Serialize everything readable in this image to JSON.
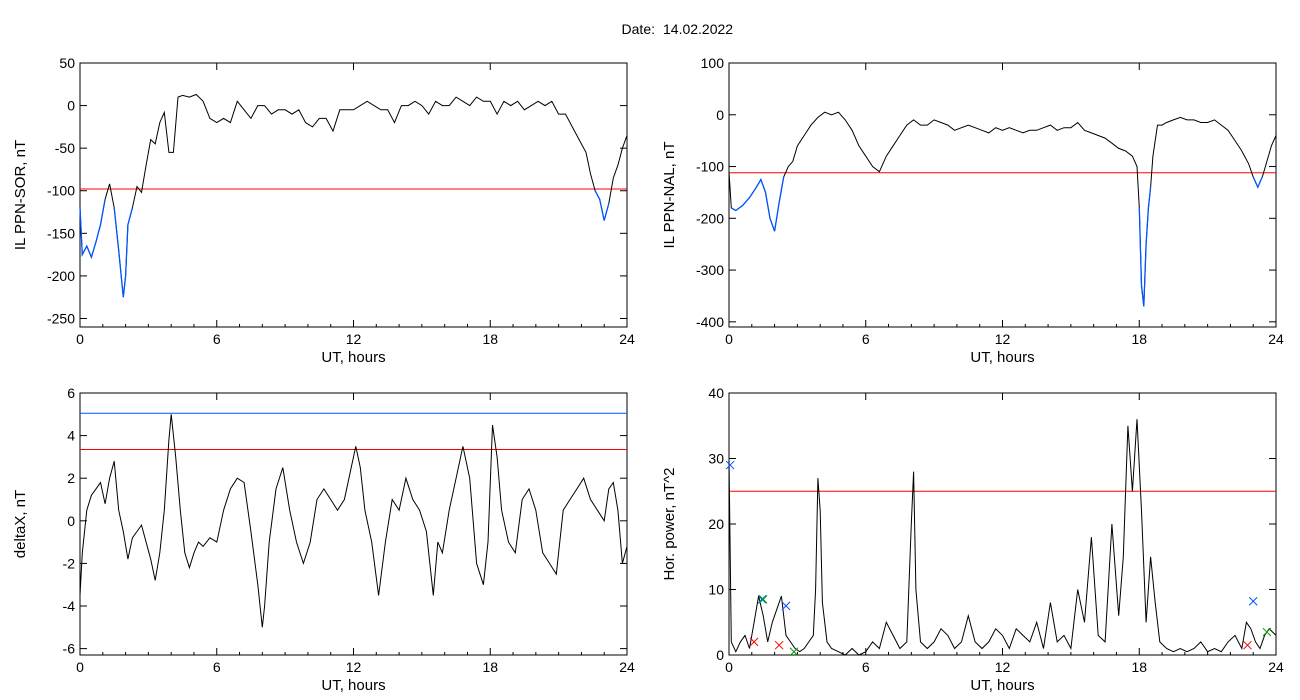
{
  "figure": {
    "title_prefix": "Date:",
    "title_date": "14.02.2022"
  },
  "colors": {
    "black": "#000000",
    "red": "#ff0000",
    "blue": "#0055ff",
    "green": "#00a000",
    "frame": "#000000"
  },
  "chart_data": [
    {
      "type": "line",
      "ylabel": "IL PPN-SOR, nT",
      "xlabel": "UT, hours",
      "xlim": [
        0,
        24
      ],
      "ylim": [
        -260,
        50
      ],
      "xticks": [
        0,
        6,
        12,
        18,
        24
      ],
      "yticks": [
        -250,
        -200,
        -150,
        -100,
        -50,
        0,
        50
      ],
      "threshold": -98,
      "series": [
        {
          "color": "black",
          "highlight_below_threshold": "blue",
          "x": [
            0,
            0.1,
            0.3,
            0.5,
            0.7,
            0.9,
            1.1,
            1.3,
            1.5,
            1.7,
            1.9,
            2.0,
            2.1,
            2.3,
            2.5,
            2.7,
            2.9,
            3.1,
            3.3,
            3.5,
            3.7,
            3.9,
            4.1,
            4.3,
            4.5,
            4.8,
            5.1,
            5.4,
            5.7,
            6.0,
            6.3,
            6.6,
            6.9,
            7.2,
            7.5,
            7.8,
            8.1,
            8.4,
            8.7,
            9.0,
            9.3,
            9.6,
            9.9,
            10.2,
            10.5,
            10.8,
            11.1,
            11.4,
            11.7,
            12.0,
            12.3,
            12.6,
            12.9,
            13.2,
            13.5,
            13.8,
            14.1,
            14.4,
            14.7,
            15.0,
            15.3,
            15.6,
            15.9,
            16.2,
            16.5,
            16.8,
            17.1,
            17.4,
            17.7,
            18.0,
            18.3,
            18.6,
            18.9,
            19.2,
            19.5,
            19.8,
            20.1,
            20.4,
            20.7,
            21.0,
            21.3,
            21.6,
            21.9,
            22.2,
            22.4,
            22.6,
            22.8,
            23.0,
            23.2,
            23.4,
            23.6,
            23.8,
            24.0
          ],
          "y": [
            -120,
            -175,
            -165,
            -178,
            -160,
            -140,
            -110,
            -92,
            -120,
            -170,
            -225,
            -200,
            -140,
            -120,
            -95,
            -102,
            -70,
            -40,
            -45,
            -20,
            -8,
            -55,
            -55,
            10,
            12,
            10,
            13,
            5,
            -15,
            -20,
            -15,
            -20,
            5,
            -5,
            -15,
            0,
            0,
            -10,
            -5,
            -5,
            -10,
            -5,
            -20,
            -25,
            -15,
            -15,
            -30,
            -5,
            -5,
            -5,
            0,
            5,
            0,
            -5,
            -5,
            -20,
            0,
            0,
            5,
            0,
            -10,
            5,
            0,
            0,
            10,
            5,
            0,
            10,
            5,
            5,
            -10,
            5,
            0,
            5,
            -5,
            0,
            5,
            0,
            5,
            -10,
            -10,
            -25,
            -40,
            -55,
            -80,
            -100,
            -110,
            -135,
            -115,
            -85,
            -70,
            -50,
            -35
          ]
        }
      ]
    },
    {
      "type": "line",
      "ylabel": "IL PPN-NAL, nT",
      "xlabel": "UT, hours",
      "xlim": [
        0,
        24
      ],
      "ylim": [
        -410,
        100
      ],
      "xticks": [
        0,
        6,
        12,
        18,
        24
      ],
      "yticks": [
        -400,
        -300,
        -200,
        -100,
        0,
        100
      ],
      "threshold": -112,
      "series": [
        {
          "color": "black",
          "highlight_below_threshold": "blue",
          "x": [
            0,
            0.1,
            0.3,
            0.6,
            0.9,
            1.2,
            1.4,
            1.6,
            1.8,
            2.0,
            2.2,
            2.4,
            2.6,
            2.8,
            3.0,
            3.3,
            3.6,
            3.9,
            4.2,
            4.5,
            4.8,
            5.1,
            5.4,
            5.7,
            6.0,
            6.3,
            6.6,
            6.9,
            7.2,
            7.5,
            7.8,
            8.1,
            8.4,
            8.7,
            9.0,
            9.3,
            9.6,
            9.9,
            10.2,
            10.5,
            10.8,
            11.1,
            11.4,
            11.7,
            12.0,
            12.3,
            12.6,
            12.9,
            13.2,
            13.5,
            13.8,
            14.1,
            14.4,
            14.7,
            15.0,
            15.3,
            15.6,
            15.9,
            16.2,
            16.5,
            16.8,
            17.1,
            17.4,
            17.7,
            17.9,
            18.0,
            18.1,
            18.2,
            18.3,
            18.4,
            18.5,
            18.6,
            18.8,
            19.0,
            19.2,
            19.5,
            19.8,
            20.1,
            20.4,
            20.7,
            21.0,
            21.3,
            21.6,
            21.9,
            22.2,
            22.5,
            22.8,
            23.0,
            23.2,
            23.4,
            23.6,
            23.8,
            24.0
          ],
          "y": [
            -110,
            -180,
            -185,
            -175,
            -160,
            -140,
            -125,
            -150,
            -200,
            -225,
            -170,
            -120,
            -100,
            -90,
            -60,
            -40,
            -20,
            -5,
            5,
            0,
            5,
            -10,
            -30,
            -60,
            -80,
            -100,
            -110,
            -80,
            -60,
            -40,
            -20,
            -10,
            -20,
            -20,
            -10,
            -15,
            -20,
            -30,
            -25,
            -20,
            -25,
            -30,
            -35,
            -25,
            -30,
            -25,
            -30,
            -35,
            -30,
            -30,
            -25,
            -20,
            -30,
            -25,
            -25,
            -15,
            -30,
            -35,
            -40,
            -45,
            -55,
            -65,
            -70,
            -80,
            -100,
            -180,
            -330,
            -370,
            -250,
            -180,
            -140,
            -80,
            -20,
            -20,
            -15,
            -10,
            -5,
            -10,
            -10,
            -15,
            -15,
            -10,
            -20,
            -30,
            -50,
            -70,
            -95,
            -120,
            -140,
            -120,
            -90,
            -60,
            -40
          ]
        }
      ]
    },
    {
      "type": "line",
      "ylabel": "deltaX, nT",
      "xlabel": "UT, hours",
      "xlim": [
        0,
        24
      ],
      "ylim": [
        -6.3,
        6.0
      ],
      "xticks": [
        0,
        6,
        12,
        18,
        24
      ],
      "yticks": [
        -6,
        -4,
        -2,
        0,
        2,
        4,
        6
      ],
      "threshold": 3.35,
      "threshold2": 5.05,
      "series": [
        {
          "color": "black",
          "x": [
            0,
            0.1,
            0.3,
            0.5,
            0.7,
            0.9,
            1.1,
            1.3,
            1.5,
            1.7,
            1.9,
            2.1,
            2.3,
            2.5,
            2.7,
            2.9,
            3.1,
            3.3,
            3.5,
            3.7,
            3.9,
            4.0,
            4.2,
            4.4,
            4.6,
            4.8,
            5.0,
            5.2,
            5.4,
            5.7,
            6.0,
            6.3,
            6.6,
            6.9,
            7.2,
            7.5,
            7.8,
            8.0,
            8.1,
            8.3,
            8.6,
            8.9,
            9.2,
            9.5,
            9.8,
            10.1,
            10.4,
            10.7,
            11.0,
            11.3,
            11.6,
            11.9,
            12.1,
            12.3,
            12.5,
            12.8,
            13.1,
            13.4,
            13.7,
            14.0,
            14.3,
            14.6,
            14.9,
            15.2,
            15.5,
            15.7,
            15.9,
            16.2,
            16.5,
            16.8,
            17.1,
            17.4,
            17.7,
            17.9,
            18.1,
            18.3,
            18.5,
            18.8,
            19.1,
            19.4,
            19.7,
            20.0,
            20.3,
            20.6,
            20.9,
            21.2,
            21.5,
            21.8,
            22.1,
            22.4,
            22.7,
            23.0,
            23.2,
            23.4,
            23.6,
            23.8,
            24.0
          ],
          "y": [
            -3.5,
            -1.5,
            0.5,
            1.2,
            1.5,
            1.8,
            0.8,
            2.0,
            2.8,
            0.5,
            -0.5,
            -1.8,
            -0.8,
            -0.5,
            -0.2,
            -1.0,
            -1.8,
            -2.8,
            -1.5,
            0.5,
            3.8,
            5.0,
            3.0,
            0.5,
            -1.5,
            -2.2,
            -1.5,
            -1.0,
            -1.2,
            -0.8,
            -1.0,
            0.5,
            1.5,
            2.0,
            1.8,
            -0.5,
            -3.0,
            -5.0,
            -4.0,
            -1.0,
            1.5,
            2.5,
            0.5,
            -1.0,
            -2.0,
            -1.0,
            1.0,
            1.5,
            1.0,
            0.5,
            1.0,
            2.5,
            3.5,
            2.5,
            0.5,
            -1.0,
            -3.5,
            -1.0,
            1.0,
            0.5,
            2.0,
            1.0,
            0.5,
            -0.5,
            -3.5,
            -1.0,
            -1.5,
            0.5,
            2.0,
            3.5,
            2.0,
            -2.0,
            -3.0,
            -1.0,
            4.5,
            3.0,
            0.5,
            -1.0,
            -1.5,
            1.0,
            1.5,
            0.5,
            -1.5,
            -2.0,
            -2.5,
            0.5,
            1.0,
            1.5,
            2.0,
            1.0,
            0.5,
            0.0,
            1.5,
            1.8,
            0.5,
            -2.0,
            -1.2
          ]
        }
      ]
    },
    {
      "type": "line",
      "ylabel": "Hor. power, nT^2",
      "xlabel": "UT, hours",
      "xlim": [
        0,
        24
      ],
      "ylim": [
        0,
        40
      ],
      "xticks": [
        0,
        6,
        12,
        18,
        24
      ],
      "yticks": [
        0,
        10,
        20,
        30,
        40
      ],
      "threshold": 25,
      "series": [
        {
          "color": "black",
          "x": [
            0,
            0.1,
            0.3,
            0.5,
            0.7,
            0.9,
            1.1,
            1.3,
            1.5,
            1.7,
            1.9,
            2.1,
            2.3,
            2.5,
            2.7,
            2.9,
            3.1,
            3.3,
            3.5,
            3.7,
            3.8,
            3.9,
            4.0,
            4.1,
            4.3,
            4.5,
            4.8,
            5.1,
            5.4,
            5.7,
            6.0,
            6.3,
            6.6,
            6.9,
            7.2,
            7.5,
            7.8,
            8.0,
            8.1,
            8.2,
            8.4,
            8.7,
            9.0,
            9.3,
            9.6,
            9.9,
            10.2,
            10.5,
            10.8,
            11.1,
            11.4,
            11.7,
            12.0,
            12.3,
            12.6,
            12.9,
            13.2,
            13.5,
            13.8,
            14.1,
            14.4,
            14.7,
            15.0,
            15.3,
            15.6,
            15.9,
            16.2,
            16.5,
            16.8,
            17.1,
            17.3,
            17.5,
            17.7,
            17.9,
            18.1,
            18.3,
            18.5,
            18.7,
            18.9,
            19.2,
            19.5,
            19.8,
            20.1,
            20.4,
            20.7,
            21.0,
            21.3,
            21.6,
            21.9,
            22.2,
            22.5,
            22.7,
            22.9,
            23.1,
            23.3,
            23.5,
            23.7,
            24.0
          ],
          "y": [
            30,
            2,
            0.5,
            2,
            3,
            1,
            5,
            9,
            6,
            2,
            5,
            7,
            9,
            3,
            2,
            1,
            0.5,
            1,
            2,
            3,
            10,
            27,
            22,
            8,
            2,
            1,
            0.5,
            0,
            1,
            0,
            0.5,
            2,
            1,
            5,
            3,
            1,
            2,
            20,
            28,
            10,
            2,
            1,
            2,
            4,
            3,
            1,
            2,
            6,
            2,
            1,
            2,
            4,
            3,
            1,
            4,
            3,
            2,
            5,
            1,
            8,
            2,
            3,
            1,
            10,
            5,
            18,
            3,
            2,
            20,
            6,
            15,
            35,
            25,
            36,
            22,
            5,
            15,
            8,
            2,
            1,
            0.5,
            1,
            0.5,
            1,
            2,
            0.5,
            1,
            0.5,
            2,
            3,
            1,
            5,
            4,
            2,
            1,
            3,
            4,
            3
          ]
        }
      ],
      "markers": [
        {
          "x": 0.05,
          "y": 29,
          "color": "blue"
        },
        {
          "x": 1.1,
          "y": 2,
          "color": "red"
        },
        {
          "x": 1.45,
          "y": 8.5,
          "color": "blue"
        },
        {
          "x": 1.5,
          "y": 8.5,
          "color": "green"
        },
        {
          "x": 2.2,
          "y": 1.5,
          "color": "red"
        },
        {
          "x": 2.5,
          "y": 7.5,
          "color": "blue"
        },
        {
          "x": 2.85,
          "y": 0.5,
          "color": "green"
        },
        {
          "x": 22.75,
          "y": 1.5,
          "color": "red"
        },
        {
          "x": 23.0,
          "y": 8.2,
          "color": "blue"
        },
        {
          "x": 23.6,
          "y": 3.5,
          "color": "green"
        }
      ]
    }
  ]
}
